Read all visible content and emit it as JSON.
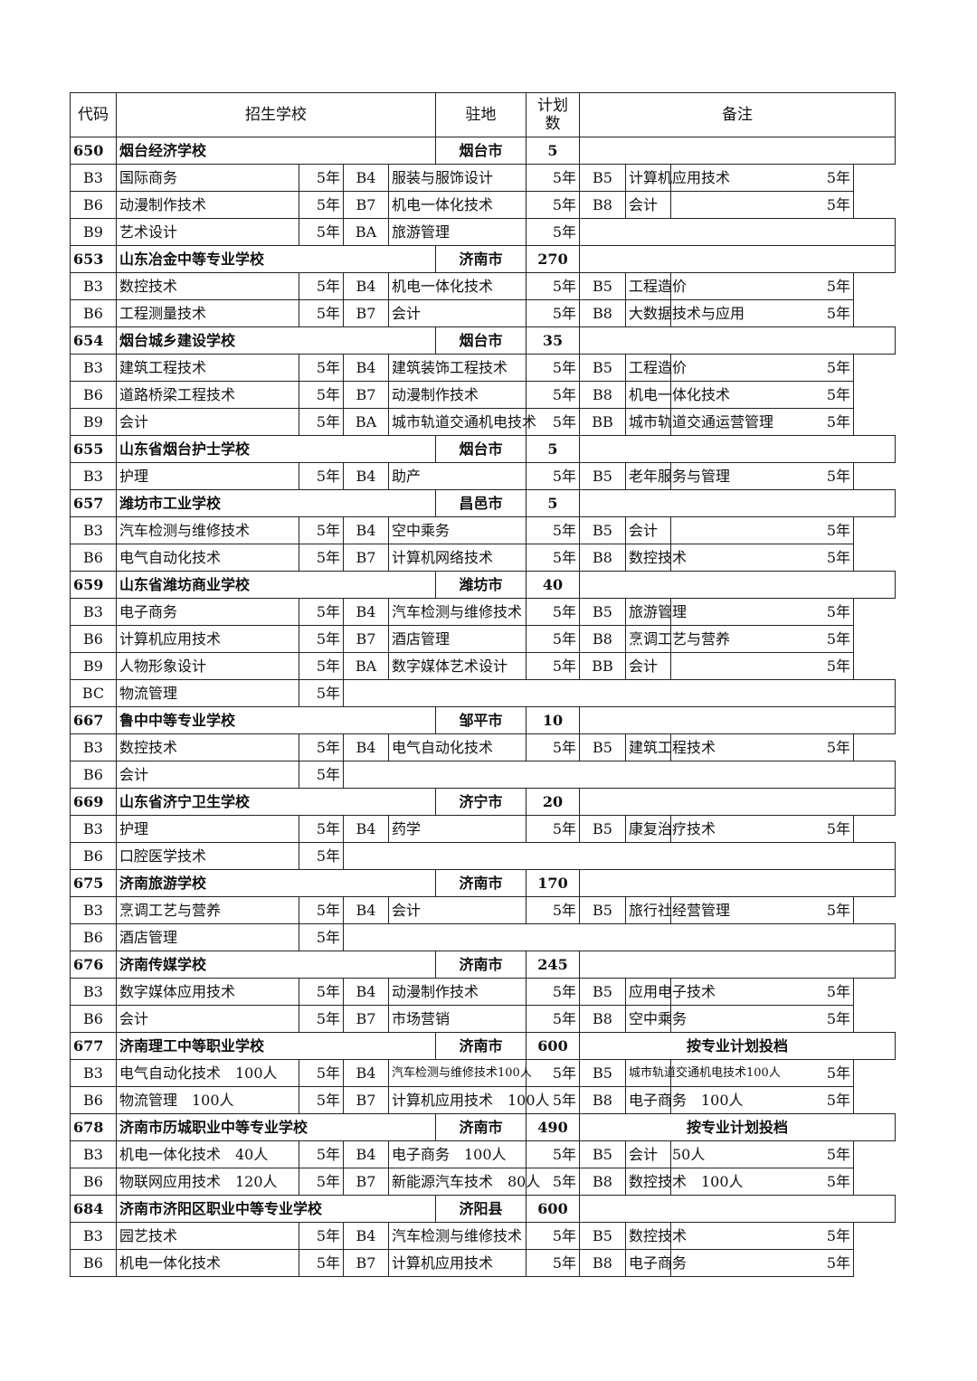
{
  "header": {
    "code": "代码",
    "school": "招生学校",
    "location": "驻地",
    "plan": "计划数",
    "note": "备注"
  },
  "schools": [
    {
      "code": "650",
      "name": "烟台经济学校",
      "location": "烟台市",
      "plan": "5",
      "note": "",
      "majors": [
        [
          "B3",
          "国际商务",
          "5年"
        ],
        [
          "B4",
          "服装与服饰设计",
          "5年"
        ],
        [
          "B5",
          "计算机应用技术",
          "5年"
        ],
        [
          "B6",
          "动漫制作技术",
          "5年"
        ],
        [
          "B7",
          "机电一体化技术",
          "5年"
        ],
        [
          "B8",
          "会计",
          "5年"
        ],
        [
          "B9",
          "艺术设计",
          "5年"
        ],
        [
          "BA",
          "旅游管理",
          "5年"
        ]
      ]
    },
    {
      "code": "653",
      "name": "山东冶金中等专业学校",
      "location": "济南市",
      "plan": "270",
      "note": "",
      "majors": [
        [
          "B3",
          "数控技术",
          "5年"
        ],
        [
          "B4",
          "机电一体化技术",
          "5年"
        ],
        [
          "B5",
          "工程造价",
          "5年"
        ],
        [
          "B6",
          "工程测量技术",
          "5年"
        ],
        [
          "B7",
          "会计",
          "5年"
        ],
        [
          "B8",
          "大数据技术与应用",
          "5年"
        ]
      ]
    },
    {
      "code": "654",
      "name": "烟台城乡建设学校",
      "location": "烟台市",
      "plan": "35",
      "note": "",
      "majors": [
        [
          "B3",
          "建筑工程技术",
          "5年"
        ],
        [
          "B4",
          "建筑装饰工程技术",
          "5年"
        ],
        [
          "B5",
          "工程造价",
          "5年"
        ],
        [
          "B6",
          "道路桥梁工程技术",
          "5年"
        ],
        [
          "B7",
          "动漫制作技术",
          "5年"
        ],
        [
          "B8",
          "机电一体化技术",
          "5年"
        ],
        [
          "B9",
          "会计",
          "5年"
        ],
        [
          "BA",
          "城市轨道交通机电技术",
          "5年"
        ],
        [
          "BB",
          "城市轨道交通运营管理",
          "5年"
        ]
      ]
    },
    {
      "code": "655",
      "name": "山东省烟台护士学校",
      "location": "烟台市",
      "plan": "5",
      "note": "",
      "majors": [
        [
          "B3",
          "护理",
          "5年"
        ],
        [
          "B4",
          "助产",
          "5年"
        ],
        [
          "B5",
          "老年服务与管理",
          "5年"
        ]
      ]
    },
    {
      "code": "657",
      "name": "潍坊市工业学校",
      "location": "昌邑市",
      "plan": "5",
      "note": "",
      "majors": [
        [
          "B3",
          "汽车检测与维修技术",
          "5年"
        ],
        [
          "B4",
          "空中乘务",
          "5年"
        ],
        [
          "B5",
          "会计",
          "5年"
        ],
        [
          "B6",
          "电气自动化技术",
          "5年"
        ],
        [
          "B7",
          "计算机网络技术",
          "5年"
        ],
        [
          "B8",
          "数控技术",
          "5年"
        ]
      ]
    },
    {
      "code": "659",
      "name": "山东省潍坊商业学校",
      "location": "潍坊市",
      "plan": "40",
      "note": "",
      "majors": [
        [
          "B3",
          "电子商务",
          "5年"
        ],
        [
          "B4",
          "汽车检测与维修技术",
          "5年"
        ],
        [
          "B5",
          "旅游管理",
          "5年"
        ],
        [
          "B6",
          "计算机应用技术",
          "5年"
        ],
        [
          "B7",
          "酒店管理",
          "5年"
        ],
        [
          "B8",
          "烹调工艺与营养",
          "5年"
        ],
        [
          "B9",
          "人物形象设计",
          "5年"
        ],
        [
          "BA",
          "数字媒体艺术设计",
          "5年"
        ],
        [
          "BB",
          "会计",
          "5年"
        ],
        [
          "BC",
          "物流管理",
          "5年"
        ]
      ]
    },
    {
      "code": "667",
      "name": "鲁中中等专业学校",
      "location": "邹平市",
      "plan": "10",
      "note": "",
      "majors": [
        [
          "B3",
          "数控技术",
          "5年"
        ],
        [
          "B4",
          "电气自动化技术",
          "5年"
        ],
        [
          "B5",
          "建筑工程技术",
          "5年"
        ],
        [
          "B6",
          "会计",
          "5年"
        ]
      ]
    },
    {
      "code": "669",
      "name": "山东省济宁卫生学校",
      "location": "济宁市",
      "plan": "20",
      "note": "",
      "majors": [
        [
          "B3",
          "护理",
          "5年"
        ],
        [
          "B4",
          "药学",
          "5年"
        ],
        [
          "B5",
          "康复治疗技术",
          "5年"
        ],
        [
          "B6",
          "口腔医学技术",
          "5年"
        ]
      ]
    },
    {
      "code": "675",
      "name": "济南旅游学校",
      "location": "济南市",
      "plan": "170",
      "note": "",
      "majors": [
        [
          "B3",
          "烹调工艺与营养",
          "5年"
        ],
        [
          "B4",
          "会计",
          "5年"
        ],
        [
          "B5",
          "旅行社经营管理",
          "5年"
        ],
        [
          "B6",
          "酒店管理",
          "5年"
        ]
      ]
    },
    {
      "code": "676",
      "name": "济南传媒学校",
      "location": "济南市",
      "plan": "245",
      "note": "",
      "majors": [
        [
          "B3",
          "数字媒体应用技术",
          "5年"
        ],
        [
          "B4",
          "动漫制作技术",
          "5年"
        ],
        [
          "B5",
          "应用电子技术",
          "5年"
        ],
        [
          "B6",
          "会计",
          "5年"
        ],
        [
          "B7",
          "市场营销",
          "5年"
        ],
        [
          "B8",
          "空中乘务",
          "5年"
        ]
      ]
    },
    {
      "code": "677",
      "name": "济南理工中等职业学校",
      "location": "济南市",
      "plan": "600",
      "note": "按专业计划投档",
      "majors": [
        [
          "B3",
          "电气自动化技术　100人",
          "5年"
        ],
        [
          "B4",
          "汽车检测与维修技术100人",
          "5年"
        ],
        [
          "B5",
          "城市轨道交通机电技术100人",
          "5年"
        ],
        [
          "B6",
          "物流管理　100人",
          "5年"
        ],
        [
          "B7",
          "计算机应用技术　100人",
          "5年"
        ],
        [
          "B8",
          "电子商务　100人",
          "5年"
        ]
      ]
    },
    {
      "code": "678",
      "name": "济南市历城职业中等专业学校",
      "location": "济南市",
      "plan": "490",
      "note": "按专业计划投档",
      "majors": [
        [
          "B3",
          "机电一体化技术　40人",
          "5年"
        ],
        [
          "B4",
          "电子商务　100人",
          "5年"
        ],
        [
          "B5",
          "会计　50人",
          "5年"
        ],
        [
          "B6",
          "物联网应用技术　120人",
          "5年"
        ],
        [
          "B7",
          "新能源汽车技术　80人",
          "5年"
        ],
        [
          "B8",
          "数控技术　100人",
          "5年"
        ]
      ]
    },
    {
      "code": "684",
      "name": "济南市济阳区职业中等专业学校",
      "location": "济阳县",
      "plan": "600",
      "note": "",
      "majors": [
        [
          "B3",
          "园艺技术",
          "5年"
        ],
        [
          "B4",
          "汽车检测与维修技术",
          "5年"
        ],
        [
          "B5",
          "数控技术",
          "5年"
        ],
        [
          "B6",
          "机电一体化技术",
          "5年"
        ],
        [
          "B7",
          "计算机应用技术",
          "5年"
        ],
        [
          "B8",
          "电子商务",
          "5年"
        ]
      ]
    }
  ]
}
